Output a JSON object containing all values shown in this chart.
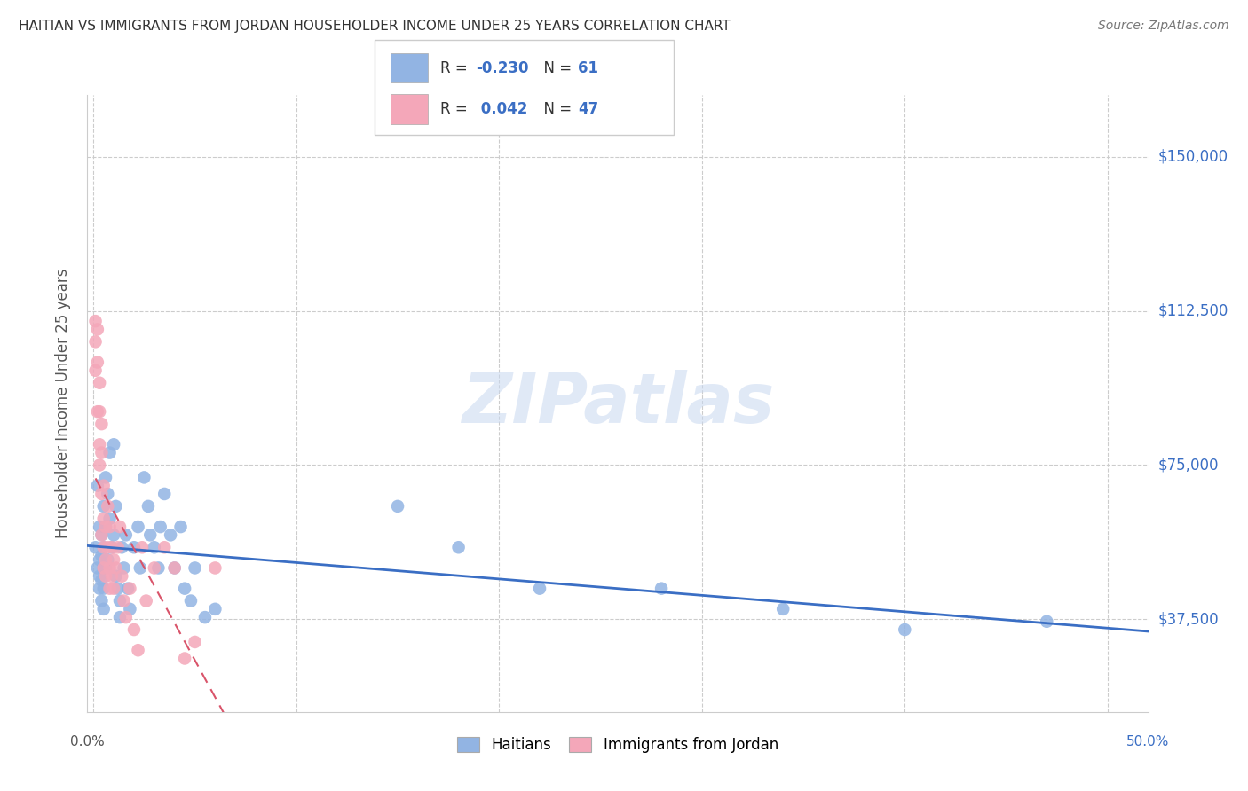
{
  "title": "HAITIAN VS IMMIGRANTS FROM JORDAN HOUSEHOLDER INCOME UNDER 25 YEARS CORRELATION CHART",
  "source": "Source: ZipAtlas.com",
  "ylabel": "Householder Income Under 25 years",
  "ytick_labels": [
    "$37,500",
    "$75,000",
    "$112,500",
    "$150,000"
  ],
  "ytick_values": [
    37500,
    75000,
    112500,
    150000
  ],
  "ymin": 15000,
  "ymax": 165000,
  "xmin": -0.003,
  "xmax": 0.52,
  "legend_label1": "Haitians",
  "legend_label2": "Immigrants from Jordan",
  "R1": -0.23,
  "N1": 61,
  "R2": 0.042,
  "N2": 47,
  "color1": "#92b4e3",
  "color2": "#f4a7b9",
  "line_color1": "#3a6ec4",
  "line_color2": "#d9546a",
  "title_color": "#333333",
  "source_color": "#777777",
  "watermark": "ZIPatlas",
  "haitian_x": [
    0.001,
    0.002,
    0.002,
    0.003,
    0.003,
    0.003,
    0.003,
    0.004,
    0.004,
    0.004,
    0.004,
    0.005,
    0.005,
    0.005,
    0.005,
    0.005,
    0.006,
    0.006,
    0.006,
    0.007,
    0.007,
    0.008,
    0.008,
    0.009,
    0.01,
    0.01,
    0.011,
    0.011,
    0.012,
    0.013,
    0.013,
    0.014,
    0.015,
    0.016,
    0.017,
    0.018,
    0.02,
    0.022,
    0.023,
    0.025,
    0.027,
    0.028,
    0.03,
    0.032,
    0.033,
    0.035,
    0.038,
    0.04,
    0.043,
    0.045,
    0.048,
    0.05,
    0.055,
    0.06,
    0.15,
    0.18,
    0.22,
    0.28,
    0.34,
    0.4,
    0.47
  ],
  "haitian_y": [
    55000,
    70000,
    50000,
    60000,
    48000,
    52000,
    45000,
    58000,
    47000,
    53000,
    42000,
    65000,
    55000,
    50000,
    45000,
    40000,
    72000,
    60000,
    50000,
    68000,
    52000,
    78000,
    62000,
    55000,
    80000,
    58000,
    65000,
    48000,
    45000,
    42000,
    38000,
    55000,
    50000,
    58000,
    45000,
    40000,
    55000,
    60000,
    50000,
    72000,
    65000,
    58000,
    55000,
    50000,
    60000,
    68000,
    58000,
    50000,
    60000,
    45000,
    42000,
    50000,
    38000,
    40000,
    65000,
    55000,
    45000,
    45000,
    40000,
    35000,
    37000
  ],
  "jordan_x": [
    0.001,
    0.001,
    0.001,
    0.002,
    0.002,
    0.002,
    0.003,
    0.003,
    0.003,
    0.003,
    0.004,
    0.004,
    0.004,
    0.004,
    0.005,
    0.005,
    0.005,
    0.005,
    0.006,
    0.006,
    0.006,
    0.007,
    0.007,
    0.008,
    0.008,
    0.008,
    0.009,
    0.009,
    0.01,
    0.01,
    0.011,
    0.012,
    0.013,
    0.014,
    0.015,
    0.016,
    0.018,
    0.02,
    0.022,
    0.024,
    0.026,
    0.03,
    0.035,
    0.04,
    0.045,
    0.05,
    0.06
  ],
  "jordan_y": [
    110000,
    105000,
    98000,
    108000,
    100000,
    88000,
    95000,
    88000,
    80000,
    75000,
    85000,
    78000,
    68000,
    58000,
    70000,
    62000,
    55000,
    50000,
    60000,
    52000,
    48000,
    65000,
    55000,
    60000,
    50000,
    45000,
    55000,
    48000,
    52000,
    45000,
    50000,
    55000,
    60000,
    48000,
    42000,
    38000,
    45000,
    35000,
    30000,
    55000,
    42000,
    50000,
    55000,
    50000,
    28000,
    32000,
    50000
  ]
}
